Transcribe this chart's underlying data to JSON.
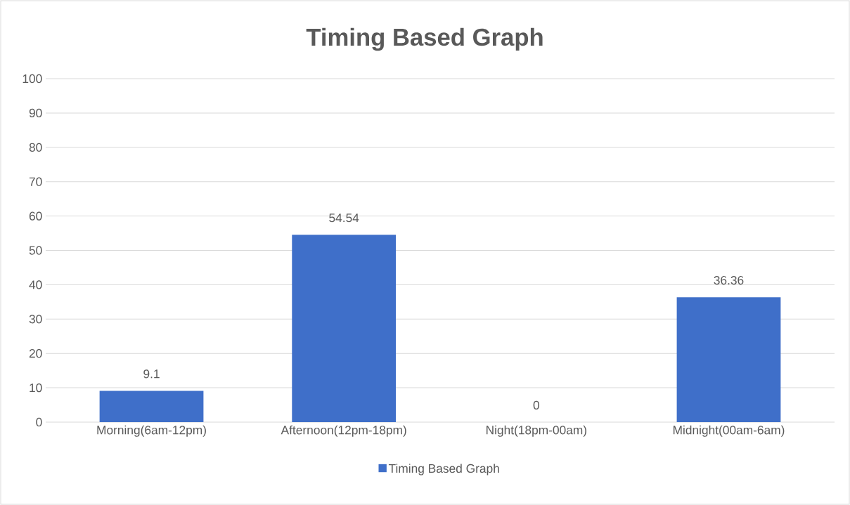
{
  "chart_data": {
    "type": "bar",
    "title": "Timing Based Graph",
    "categories": [
      "Morning(6am-12pm)",
      "Afternoon(12pm-18pm)",
      "Night(18pm-00am)",
      "Midnight(00am-6am)"
    ],
    "series": [
      {
        "name": "Timing Based Graph",
        "color": "#3f6fc9",
        "values": [
          9.1,
          54.54,
          0,
          36.36
        ]
      }
    ],
    "ylim": [
      0,
      100
    ],
    "yticks": [
      0,
      10,
      20,
      30,
      40,
      50,
      60,
      70,
      80,
      90,
      100
    ],
    "grid": "y",
    "legend": "bottom",
    "data_labels": true
  }
}
